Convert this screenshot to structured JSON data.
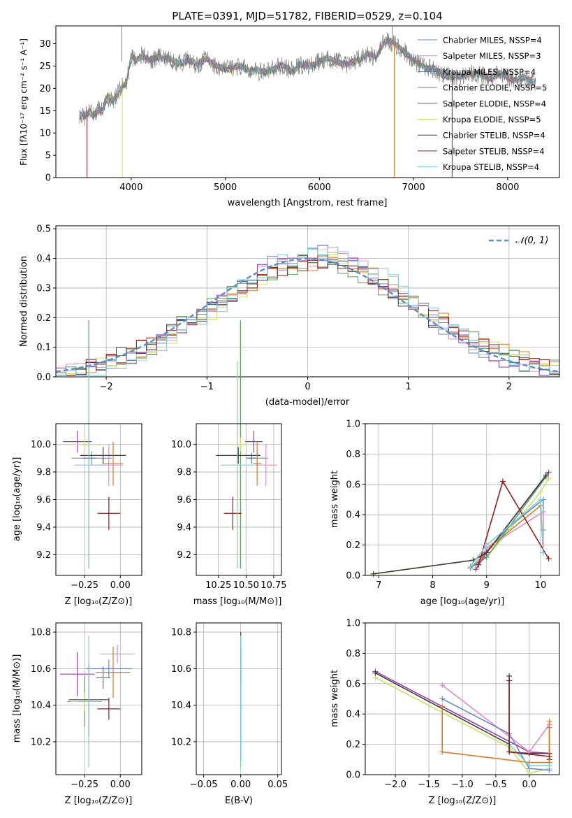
{
  "figure_title": "PLATE=0391, MJD=51782, FIBERID=0529, z=0.104",
  "colors": {
    "Chabrier MILES": "#6a8ad8",
    "Salpeter MILES": "#e68ac2",
    "Kroupa MILES": "#4a7c9a",
    "Chabrier ELODIE": "#58a058",
    "Salpeter ELODIE": "#9a3ab0",
    "Kroupa ELODIE": "#c8e65a",
    "Chabrier STELIB": "#404040",
    "Salpeter STELIB": "#a01818",
    "Kroupa STELIB": "#70d0d8",
    "orange": "#e07a22",
    "gauss": "#5b8fd6"
  },
  "chart_data": [
    {
      "id": "spectrum",
      "type": "line",
      "title": "PLATE=0391, MJD=51782, FIBERID=0529, z=0.104",
      "xlabel": "wavelength [Angstrom, rest frame]",
      "ylabel": "Flux [fλ10⁻¹⁷ erg cm⁻² s⁻¹ A⁻¹]",
      "xlim": [
        3200,
        8550
      ],
      "ylim": [
        0,
        34
      ],
      "xticks": [
        "4000",
        "5000",
        "6000",
        "7000",
        "8000"
      ],
      "yticks": [
        "0",
        "5",
        "10",
        "15",
        "20",
        "25",
        "30"
      ],
      "legend_position": "top-right",
      "legend": [
        "Chabrier MILES, NSSP=4",
        "Salpeter MILES, NSSP=3",
        "Kroupa MILES, NSSP=4",
        "Chabrier ELODIE, NSSP=5",
        "Salpeter ELODIE, NSSP=4",
        "Kroupa ELODIE, NSSP=5",
        "Chabrier STELIB, NSSP=4",
        "Salpeter STELIB, NSSP=4",
        "Kroupa STELIB, NSSP=4"
      ],
      "data_wavelength": [
        3450,
        3500,
        3550,
        3600,
        3650,
        3700,
        3750,
        3800,
        3850,
        3900,
        3950,
        4000,
        4050,
        4100,
        4150,
        4200,
        4300,
        4400,
        4500,
        4600,
        4700,
        4800,
        4900,
        5000,
        5100,
        5200,
        5300,
        5400,
        5500,
        5600,
        5700,
        5800,
        5900,
        6000,
        6100,
        6200,
        6300,
        6400,
        6500,
        6600,
        6700,
        6800,
        6900,
        7000,
        7100,
        7200,
        7300,
        7400,
        7500,
        7600,
        7700,
        7800,
        7900,
        8000,
        8100,
        8200,
        8300
      ],
      "data_flux": [
        14,
        13.5,
        14.5,
        14,
        15.5,
        15,
        18,
        17,
        18.5,
        20.5,
        21,
        27,
        26.5,
        27.5,
        27,
        26,
        27.2,
        26.5,
        25.5,
        26.5,
        25,
        27,
        24.8,
        24.5,
        24.8,
        24.5,
        24,
        23.5,
        24.5,
        25,
        24,
        25.2,
        25,
        26,
        26.5,
        26.2,
        25,
        26.5,
        27.5,
        27,
        31,
        29.8,
        28.5,
        26,
        25,
        24.5,
        23,
        22.8,
        22.5,
        23.5,
        23,
        22.5,
        23,
        22.5,
        22,
        22,
        21.5
      ]
    },
    {
      "id": "residuals",
      "type": "line",
      "xlabel": "(data-model)/error",
      "ylabel": "Normed distribution",
      "xlim": [
        -2.5,
        2.5
      ],
      "ylim": [
        0,
        0.51
      ],
      "xticks": [
        "−2",
        "−1",
        "0",
        "1",
        "2"
      ],
      "yticks": [
        "0.0",
        "0.1",
        "0.2",
        "0.3",
        "0.4",
        "0.5"
      ],
      "legend": [
        "𝒩(0, 1)"
      ],
      "legend_position": "top-right",
      "grid": true
    },
    {
      "id": "age-vs-Z",
      "type": "scatter",
      "xlabel": "Z [log₁₀(Z/Z⊙)]",
      "ylabel": "age  [log₁₀(age/yr)]",
      "xlim": [
        -0.45,
        0.15
      ],
      "ylim": [
        9.05,
        10.15
      ],
      "xticks": [
        "−0.25",
        "0.00"
      ],
      "yticks": [
        "9.2",
        "9.4",
        "9.6",
        "9.8",
        "10.0"
      ],
      "grid": true,
      "points": [
        {
          "model": "Chabrier MILES",
          "x": -0.2,
          "y": 9.9,
          "xerr": 0.14,
          "yerr": 0.05
        },
        {
          "model": "Salpeter MILES",
          "x": -0.08,
          "y": 9.85,
          "xerr": 0.1,
          "yerr": 0.15
        },
        {
          "model": "Kroupa MILES",
          "x": -0.22,
          "y": 9.9,
          "xerr": 0.05,
          "yerr": 0.04
        },
        {
          "model": "Chabrier ELODIE",
          "x": -0.22,
          "y": 10.0,
          "xerr": 0.05,
          "yerr": 0.9
        },
        {
          "model": "Salpeter ELODIE",
          "x": -0.3,
          "y": 10.02,
          "xerr": 0.1,
          "yerr": 0.08
        },
        {
          "model": "Kroupa ELODIE",
          "x": -0.25,
          "y": 10.0,
          "xerr": 0.15,
          "yerr": 0.05
        },
        {
          "model": "Chabrier STELIB",
          "x": -0.12,
          "y": 9.92,
          "xerr": 0.16,
          "yerr": 0.06
        },
        {
          "model": "Salpeter STELIB",
          "x": -0.08,
          "y": 9.5,
          "xerr": 0.08,
          "yerr": 0.12
        },
        {
          "model": "Kroupa STELIB",
          "x": -0.22,
          "y": 9.85,
          "xerr": 0.1,
          "yerr": 0.75
        },
        {
          "model": "orange",
          "x": -0.05,
          "y": 9.86,
          "xerr": 0.07,
          "yerr": 0.16
        }
      ]
    },
    {
      "id": "age-vs-mass",
      "type": "scatter",
      "xlabel": "mass [log₁₀(M/M⊙)]",
      "xlim": [
        10.05,
        10.82
      ],
      "ylim": [
        9.05,
        10.15
      ],
      "xticks": [
        "10.25",
        "10.50",
        "10.75"
      ],
      "yticks": [
        "9.2",
        "9.4",
        "9.6",
        "9.8",
        "10.0"
      ],
      "grid": true,
      "points": [
        {
          "model": "Chabrier MILES",
          "x": 10.6,
          "y": 9.9,
          "xerr": 0.1,
          "yerr": 0.05
        },
        {
          "model": "Salpeter MILES",
          "x": 10.68,
          "y": 9.85,
          "xerr": 0.1,
          "yerr": 0.15
        },
        {
          "model": "Kroupa MILES",
          "x": 10.55,
          "y": 9.9,
          "xerr": 0.04,
          "yerr": 0.04
        },
        {
          "model": "Chabrier ELODIE",
          "x": 10.45,
          "y": 10.0,
          "xerr": 0.05,
          "yerr": 0.9
        },
        {
          "model": "Salpeter ELODIE",
          "x": 10.57,
          "y": 10.02,
          "xerr": 0.08,
          "yerr": 0.08
        },
        {
          "model": "Kroupa ELODIE",
          "x": 10.45,
          "y": 10.0,
          "xerr": 0.1,
          "yerr": 0.05
        },
        {
          "model": "Chabrier STELIB",
          "x": 10.43,
          "y": 9.92,
          "xerr": 0.2,
          "yerr": 0.06
        },
        {
          "model": "Salpeter STELIB",
          "x": 10.38,
          "y": 9.5,
          "xerr": 0.08,
          "yerr": 0.12
        },
        {
          "model": "Kroupa STELIB",
          "x": 10.42,
          "y": 9.85,
          "xerr": 0.15,
          "yerr": 0.75
        },
        {
          "model": "orange",
          "x": 10.6,
          "y": 9.86,
          "xerr": 0.04,
          "yerr": 0.16
        }
      ]
    },
    {
      "id": "weight-vs-age",
      "type": "line",
      "xlabel": "age  [log₁₀(age/yr)]",
      "ylabel": "mass weight",
      "xlim": [
        6.75,
        10.35
      ],
      "ylim": [
        0,
        1
      ],
      "xticks": [
        "7",
        "8",
        "9",
        "10"
      ],
      "yticks": [
        "0.0",
        "0.2",
        "0.4",
        "0.6",
        "0.8",
        "1.0"
      ],
      "grid": true,
      "series": [
        {
          "model": "Kroupa ELODIE",
          "x": [
            6.9,
            8.75,
            9.0,
            10.0,
            10.15
          ],
          "y": [
            0.01,
            0.1,
            0.12,
            0.55,
            0.64
          ]
        },
        {
          "model": "Chabrier MILES",
          "x": [
            8.7,
            9.0,
            9.35,
            10.05,
            10.05
          ],
          "y": [
            0.05,
            0.15,
            0.3,
            0.5,
            0.3
          ]
        },
        {
          "model": "Salpeter MILES",
          "x": [
            8.8,
            9.0,
            10.05,
            10.05
          ],
          "y": [
            0.07,
            0.18,
            0.42,
            0.15
          ]
        },
        {
          "model": "orange",
          "x": [
            8.9,
            9.1,
            10.0,
            10.05
          ],
          "y": [
            0.12,
            0.2,
            0.46,
            0.15
          ]
        },
        {
          "model": "Chabrier ELODIE",
          "x": [
            8.7,
            9.0,
            10.1
          ],
          "y": [
            0.05,
            0.12,
            0.65
          ]
        },
        {
          "model": "Salpeter ELODIE",
          "x": [
            8.8,
            9.0,
            10.15
          ],
          "y": [
            0.04,
            0.15,
            0.68
          ]
        },
        {
          "model": "Chabrier STELIB",
          "x": [
            6.9,
            8.75,
            9.0,
            10.1
          ],
          "y": [
            0.01,
            0.1,
            0.15,
            0.66
          ]
        },
        {
          "model": "Salpeter STELIB",
          "x": [
            8.85,
            9.3,
            10.15
          ],
          "y": [
            0.07,
            0.62,
            0.11
          ]
        },
        {
          "model": "Kroupa STELIB",
          "x": [
            8.7,
            9.0,
            10.0,
            10.05
          ],
          "y": [
            0.06,
            0.2,
            0.5,
            0.15
          ]
        }
      ]
    },
    {
      "id": "mass-vs-Z",
      "type": "scatter",
      "xlabel": "Z [log₁₀(Z/Z⊙)]",
      "ylabel": "mass [log₁₀(M/M⊙)]",
      "xlim": [
        -0.45,
        0.15
      ],
      "ylim": [
        10.02,
        10.85
      ],
      "xticks": [
        "−0.25",
        "0.00"
      ],
      "yticks": [
        "10.2",
        "10.4",
        "10.6",
        "10.8"
      ],
      "grid": true,
      "points": [
        {
          "model": "Chabrier MILES",
          "x": -0.08,
          "y": 10.6,
          "xerr": 0.16,
          "yerr": 0.05
        },
        {
          "model": "Salpeter MILES",
          "x": -0.02,
          "y": 10.68,
          "xerr": 0.12,
          "yerr": 0.05
        },
        {
          "model": "Kroupa MILES",
          "x": -0.12,
          "y": 10.55,
          "xerr": 0.05,
          "yerr": 0.06
        },
        {
          "model": "Chabrier ELODIE",
          "x": -0.25,
          "y": 10.42,
          "xerr": 0.12,
          "yerr": 0.14
        },
        {
          "model": "Salpeter ELODIE",
          "x": -0.3,
          "y": 10.57,
          "xerr": 0.12,
          "yerr": 0.12
        },
        {
          "model": "Kroupa ELODIE",
          "x": -0.25,
          "y": 10.42,
          "xerr": 0.1,
          "yerr": 0.05
        },
        {
          "model": "Chabrier STELIB",
          "x": -0.22,
          "y": 10.43,
          "xerr": 0.14,
          "yerr": 0.2
        },
        {
          "model": "Salpeter STELIB",
          "x": -0.08,
          "y": 10.38,
          "xerr": 0.08,
          "yerr": 0.06
        },
        {
          "model": "Kroupa STELIB",
          "x": -0.22,
          "y": 10.42,
          "xerr": 0.08,
          "yerr": 0.36
        },
        {
          "model": "orange",
          "x": -0.05,
          "y": 10.58,
          "xerr": 0.12,
          "yerr": 0.14
        }
      ]
    },
    {
      "id": "mass-vs-EBV",
      "type": "scatter",
      "xlabel": "E(B-V)",
      "xlim": [
        -0.06,
        0.055
      ],
      "ylim": [
        10.02,
        10.85
      ],
      "xticks": [
        "−0.05",
        "0.00",
        "0.05"
      ],
      "yticks": [
        "10.2",
        "10.4",
        "10.6",
        "10.8"
      ],
      "grid": true,
      "points": [
        {
          "model": "Salpeter MILES",
          "x": 0.0,
          "y": 10.68,
          "xerr": 0.0,
          "yerr": 0.12
        },
        {
          "model": "Salpeter ELODIE",
          "x": 0.0,
          "y": 10.62,
          "xerr": 0.0,
          "yerr": 0.1
        },
        {
          "model": "Chabrier STELIB",
          "x": 0.0,
          "y": 10.45,
          "xerr": 0.0,
          "yerr": 0.35
        },
        {
          "model": "Kroupa STELIB",
          "x": 0.0,
          "y": 10.42,
          "xerr": 0.0,
          "yerr": 0.36
        }
      ]
    },
    {
      "id": "weight-vs-Z",
      "type": "line",
      "xlabel": "Z [log₁₀(Z/Z⊙)]",
      "ylabel": "mass weight",
      "xlim": [
        -2.45,
        0.45
      ],
      "ylim": [
        0,
        1
      ],
      "xticks": [
        "−2.0",
        "−1.5",
        "−1.0",
        "−0.5",
        "0.0"
      ],
      "yticks": [
        "0.0",
        "0.2",
        "0.4",
        "0.6",
        "0.8",
        "1.0"
      ],
      "grid": true,
      "series": [
        {
          "model": "Salpeter ELODIE",
          "x": [
            -2.3,
            0.0,
            0.3
          ],
          "y": [
            0.68,
            0.15,
            0.14
          ]
        },
        {
          "model": "Kroupa ELODIE",
          "x": [
            -2.3,
            -0.3,
            0.0,
            0.3
          ],
          "y": [
            0.64,
            0.18,
            0.01,
            0.04
          ]
        },
        {
          "model": "Chabrier STELIB",
          "x": [
            -2.3,
            -0.3,
            -0.3,
            -0.3,
            0.0,
            0.3,
            0.3
          ],
          "y": [
            0.67,
            0.2,
            0.65,
            0.15,
            0.14,
            0.14,
            0.1
          ]
        },
        {
          "model": "Salpeter MILES",
          "x": [
            -1.3,
            0.0,
            0.3,
            0.3
          ],
          "y": [
            0.59,
            0.15,
            0.33,
            0.06
          ]
        },
        {
          "model": "Chabrier MILES",
          "x": [
            -1.3,
            -0.3,
            0.0,
            0.3,
            0.3
          ],
          "y": [
            0.5,
            0.27,
            0.04,
            0.03,
            0.31
          ]
        },
        {
          "model": "orange",
          "x": [
            -1.3,
            -1.3,
            0.0,
            0.3,
            0.3
          ],
          "y": [
            0.45,
            0.15,
            0.08,
            0.08,
            0.35
          ]
        },
        {
          "model": "Kroupa STELIB",
          "x": [
            -0.3,
            -0.3,
            0.0,
            0.3
          ],
          "y": [
            0.6,
            0.2,
            0.06,
            0.06
          ]
        },
        {
          "model": "Salpeter STELIB",
          "x": [
            -0.3,
            -0.3,
            0.3
          ],
          "y": [
            0.62,
            0.15,
            0.12
          ]
        }
      ]
    }
  ]
}
